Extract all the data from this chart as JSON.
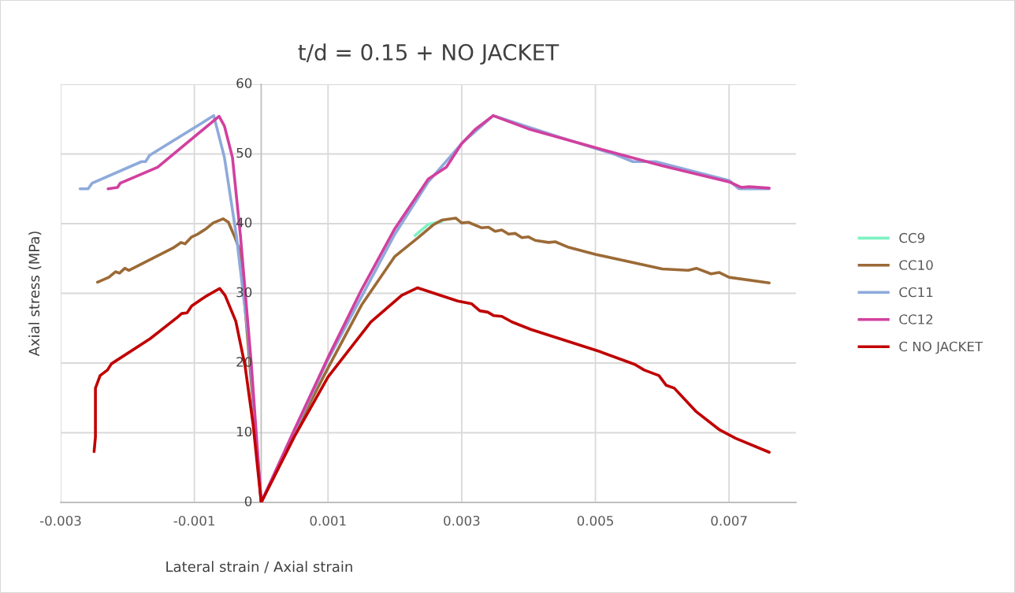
{
  "chart_data": {
    "type": "line",
    "title": "t/d = 0.15 + NO JACKET",
    "xlabel": "Lateral strain / Axial strain",
    "ylabel": "Axial stress (MPa)",
    "xlim": [
      -0.003,
      0.008
    ],
    "xticks": [
      -0.003,
      -0.001,
      0.001,
      0.003,
      0.005,
      0.007
    ],
    "ylim": [
      0,
      60
    ],
    "yticks": [
      0,
      10,
      20,
      30,
      40,
      50,
      60
    ],
    "grid": true,
    "legend": "right",
    "line_style": "solid",
    "marker": "none",
    "series": [
      {
        "name": "CC9",
        "color": "#7ff2c4",
        "x": [
          0.0023,
          0.0025,
          0.0027
        ],
        "values": [
          38.3,
          39.9,
          40.3
        ]
      },
      {
        "name": "CC10",
        "color": "#9c6a36",
        "x": [
          -0.00245,
          -0.00228,
          -0.00218,
          -0.00212,
          -0.00204,
          -0.00198,
          -0.00132,
          -0.0012,
          -0.00114,
          -0.00104,
          -0.00095,
          -0.00082,
          -0.00072,
          -0.00057,
          -0.00049,
          -0.0004,
          -0.00031,
          0,
          0.0005,
          0.001,
          0.0015,
          0.002,
          0.00235,
          0.00257,
          0.0027,
          0.00291,
          0.003,
          0.0031,
          0.0033,
          0.0034,
          0.0035,
          0.0036,
          0.0037,
          0.0038,
          0.0039,
          0.004,
          0.0041,
          0.0043,
          0.0044,
          0.0046,
          0.005,
          0.006,
          0.00639,
          0.00651,
          0.00673,
          0.00685,
          0.007,
          0.0076
        ],
        "values": [
          31.6,
          32.3,
          33.1,
          32.9,
          33.6,
          33.3,
          36.5,
          37.3,
          37.1,
          38.1,
          38.5,
          39.3,
          40.1,
          40.7,
          40.2,
          38.2,
          35.9,
          0,
          10,
          19.3,
          28.3,
          35.3,
          38.0,
          39.8,
          40.5,
          40.8,
          40.1,
          40.2,
          39.4,
          39.5,
          38.9,
          39.1,
          38.5,
          38.6,
          38.0,
          38.1,
          37.6,
          37.3,
          37.4,
          36.6,
          35.6,
          33.5,
          33.3,
          33.6,
          32.8,
          33.0,
          32.3,
          31.5
        ]
      },
      {
        "name": "CC11",
        "color": "#8eaadb",
        "x": [
          -0.00271,
          -0.00259,
          -0.00253,
          -0.00179,
          -0.00173,
          -0.00167,
          -0.00071,
          -0.00055,
          -0.00037,
          -0.00019,
          0,
          0.001,
          0.002,
          0.0025,
          0.003,
          0.00347,
          0.0045,
          0.0053,
          0.00556,
          0.0059,
          0.007,
          0.00715,
          0.00734,
          0.0076
        ],
        "values": [
          45.0,
          45.0,
          45.8,
          48.9,
          48.9,
          49.8,
          55.5,
          49.5,
          38.2,
          23.5,
          0,
          20.5,
          38.5,
          46.0,
          51.5,
          55.5,
          52.3,
          49.9,
          48.9,
          48.9,
          46.2,
          45.0,
          45.0,
          45.0
        ]
      },
      {
        "name": "CC12",
        "color": "#d1409f",
        "x": [
          -0.00229,
          -0.00215,
          -0.00211,
          -0.00155,
          -0.00063,
          -0.00055,
          -0.00043,
          -0.00031,
          -0.00015,
          0,
          0.0005,
          0.001,
          0.0015,
          0.002,
          0.0025,
          0.00277,
          0.003,
          0.0032,
          0.00347,
          0.004,
          0.005,
          0.006,
          0.007,
          0.00718,
          0.0073,
          0.0076
        ],
        "values": [
          45.0,
          45.2,
          45.8,
          48.1,
          55.4,
          54.0,
          49.5,
          38.2,
          20.1,
          0,
          10.5,
          20.8,
          30.5,
          39.3,
          46.4,
          48.1,
          51.5,
          53.5,
          55.5,
          53.6,
          50.9,
          48.3,
          46.0,
          45.2,
          45.3,
          45.1
        ]
      },
      {
        "name": "C NO JACKET",
        "color": "#c00000",
        "x": [
          -0.0025,
          -0.00248,
          -0.00248,
          -0.00248,
          -0.00241,
          -0.0023,
          -0.00224,
          -0.00166,
          -0.00125,
          -0.00119,
          -0.00111,
          -0.00104,
          -0.00084,
          -0.00062,
          -0.00054,
          -0.00038,
          -0.00024,
          -0.00012,
          0,
          0.0005,
          0.001,
          0.00164,
          0.0021,
          0.00234,
          0.00294,
          0.00315,
          0.00327,
          0.00339,
          0.00348,
          0.0036,
          0.00375,
          0.00404,
          0.00508,
          0.00559,
          0.00573,
          0.00595,
          0.00606,
          0.00618,
          0.0065,
          0.00686,
          0.0071,
          0.0076
        ],
        "values": [
          7.3,
          9.4,
          14.5,
          16.4,
          18.2,
          19.0,
          19.9,
          23.5,
          26.6,
          27.1,
          27.2,
          28.2,
          29.5,
          30.7,
          29.7,
          26.0,
          19.5,
          11.1,
          0,
          9.5,
          18.0,
          25.9,
          29.7,
          30.8,
          28.9,
          28.5,
          27.5,
          27.3,
          26.8,
          26.7,
          25.9,
          24.8,
          21.6,
          19.8,
          19.0,
          18.2,
          16.8,
          16.4,
          13.1,
          10.4,
          9.2,
          7.2
        ]
      }
    ]
  }
}
